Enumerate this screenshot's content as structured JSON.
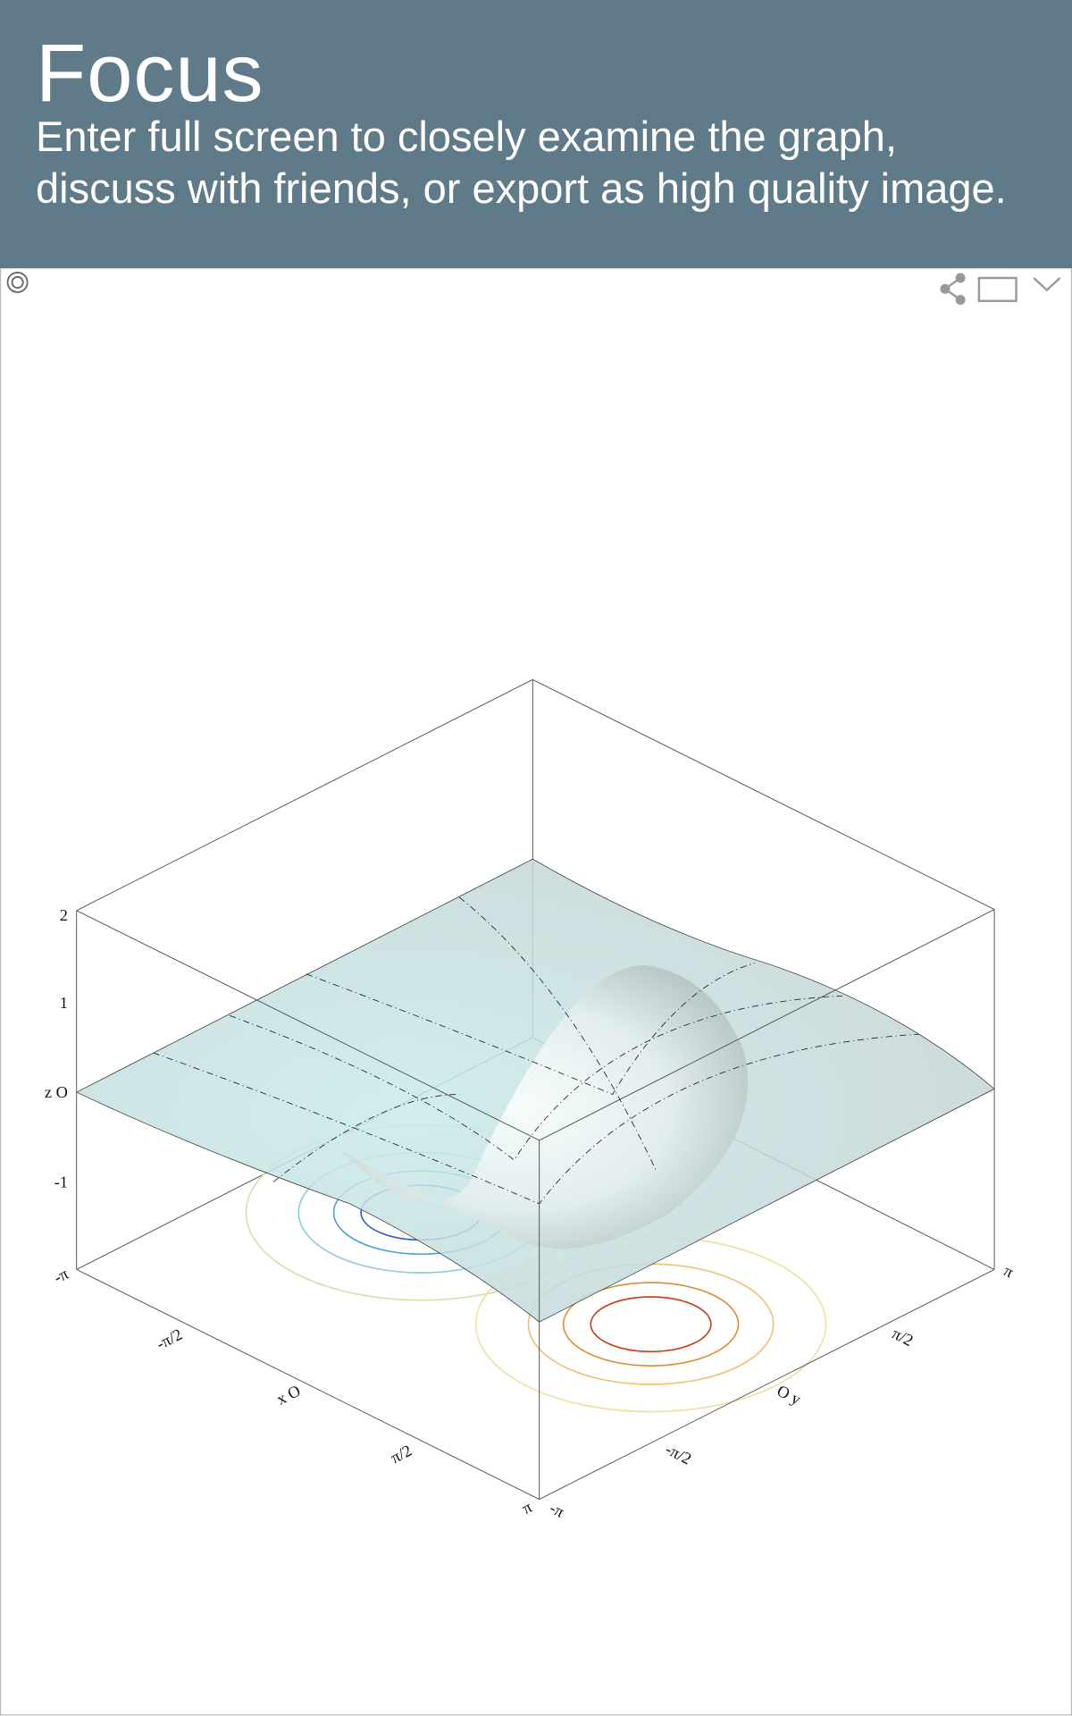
{
  "header": {
    "title": "Focus",
    "subtitle": [
      "Enter full screen to closely examine the graph,",
      "discuss with friends, or export as high quality image."
    ]
  },
  "plot": {
    "z_ticks": [
      "2",
      "1",
      "z O",
      "-1"
    ],
    "x_ticks": [
      "-π",
      "-π/2",
      "x O",
      "π/2",
      "π"
    ],
    "y_ticks": [
      "-π",
      "-π/2",
      "O y",
      "π/2",
      "π"
    ]
  }
}
